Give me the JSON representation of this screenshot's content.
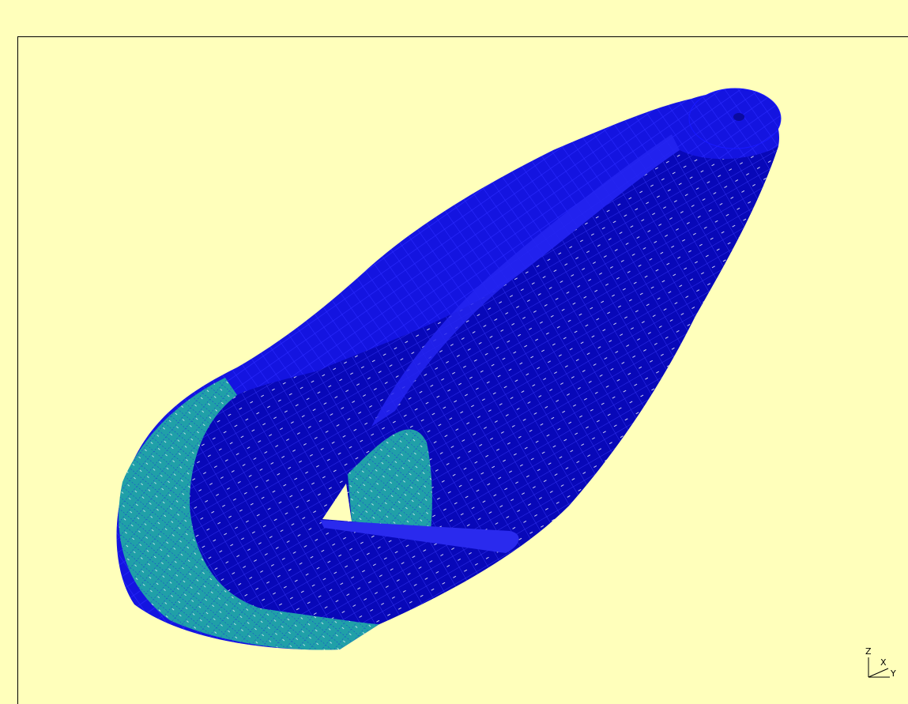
{
  "axis_triad": {
    "z_label": "Z",
    "x_label": "X",
    "y_label": "Y"
  }
}
